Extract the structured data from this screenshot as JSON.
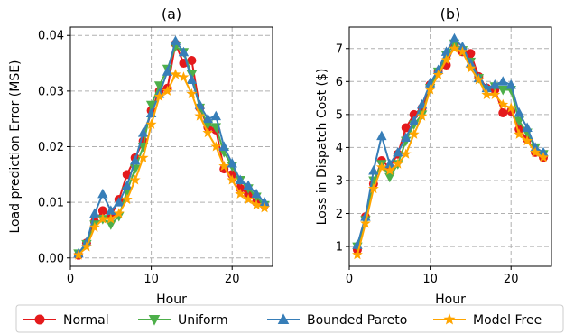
{
  "chart_data": [
    {
      "type": "line",
      "title": "(a)",
      "xlabel": "Hour",
      "ylabel": "Load prediction Error (MSE)",
      "xlim": [
        0,
        25
      ],
      "ylim": [
        -0.0015,
        0.0415
      ],
      "grid": true,
      "x_ticks": [
        0,
        10,
        20
      ],
      "x_tick_labels": [
        "0",
        "10",
        "20"
      ],
      "y_ticks": [
        0,
        0.01,
        0.02,
        0.03,
        0.04
      ],
      "y_tick_labels": [
        "0.00",
        "0.01",
        "0.02",
        "0.03",
        "0.04"
      ],
      "x": [
        1,
        2,
        3,
        4,
        5,
        6,
        7,
        8,
        9,
        10,
        11,
        12,
        13,
        14,
        15,
        16,
        17,
        18,
        19,
        20,
        21,
        22,
        23,
        24
      ],
      "series": [
        {
          "name": "Normal",
          "color": "#e41a1c",
          "marker": "circle",
          "values": [
            0.0005,
            0.0027,
            0.0065,
            0.0085,
            0.0075,
            0.0105,
            0.015,
            0.018,
            0.021,
            0.0265,
            0.03,
            0.0305,
            0.0385,
            0.035,
            0.0355,
            0.027,
            0.0235,
            0.023,
            0.016,
            0.015,
            0.0125,
            0.0115,
            0.01,
            0.0095
          ]
        },
        {
          "name": "Uniform",
          "color": "#4daf4a",
          "marker": "triangle-down",
          "values": [
            0.0008,
            0.0025,
            0.006,
            0.007,
            0.006,
            0.0075,
            0.012,
            0.016,
            0.02,
            0.0275,
            0.031,
            0.034,
            0.038,
            0.037,
            0.033,
            0.027,
            0.024,
            0.0235,
            0.019,
            0.0165,
            0.014,
            0.0125,
            0.011,
            0.0095
          ]
        },
        {
          "name": "Bounded Pareto",
          "color": "#377eb8",
          "marker": "triangle-up",
          "values": [
            0.0008,
            0.0028,
            0.008,
            0.0115,
            0.0085,
            0.01,
            0.013,
            0.0175,
            0.0225,
            0.026,
            0.0295,
            0.0335,
            0.039,
            0.037,
            0.032,
            0.0275,
            0.025,
            0.0255,
            0.02,
            0.017,
            0.014,
            0.013,
            0.0115,
            0.01
          ]
        },
        {
          "name": "Model Free",
          "color": "#ffa500",
          "marker": "star",
          "values": [
            0.0005,
            0.002,
            0.0055,
            0.007,
            0.007,
            0.008,
            0.0105,
            0.014,
            0.018,
            0.024,
            0.029,
            0.03,
            0.033,
            0.0325,
            0.0295,
            0.0255,
            0.0225,
            0.02,
            0.0165,
            0.014,
            0.0115,
            0.0105,
            0.0095,
            0.009
          ]
        }
      ]
    },
    {
      "type": "line",
      "title": "(b)",
      "xlabel": "Hour",
      "ylabel": "Loss in Dispatch Cost ($)",
      "xlim": [
        0,
        25
      ],
      "ylim": [
        0.4,
        7.65
      ],
      "grid": true,
      "x_ticks": [
        0,
        10,
        20
      ],
      "x_tick_labels": [
        "0",
        "10",
        "20"
      ],
      "y_ticks": [
        1,
        2,
        3,
        4,
        5,
        6,
        7
      ],
      "y_tick_labels": [
        "1",
        "2",
        "3",
        "4",
        "5",
        "6",
        "7"
      ],
      "x": [
        1,
        2,
        3,
        4,
        5,
        6,
        7,
        8,
        9,
        10,
        11,
        12,
        13,
        14,
        15,
        16,
        17,
        18,
        19,
        20,
        21,
        22,
        23,
        24
      ],
      "series": [
        {
          "name": "Normal",
          "color": "#e41a1c",
          "marker": "circle",
          "values": [
            0.9,
            1.9,
            2.9,
            3.6,
            3.4,
            3.8,
            4.6,
            5.0,
            5.2,
            5.9,
            6.3,
            6.5,
            7.1,
            6.9,
            6.85,
            6.15,
            5.8,
            5.75,
            5.05,
            5.1,
            4.55,
            4.25,
            3.85,
            3.7
          ]
        },
        {
          "name": "Uniform",
          "color": "#4daf4a",
          "marker": "triangle-down",
          "values": [
            1.0,
            1.8,
            3.0,
            3.5,
            3.1,
            3.5,
            4.2,
            4.7,
            5.0,
            5.8,
            6.3,
            6.8,
            7.15,
            6.95,
            6.6,
            6.1,
            5.75,
            5.85,
            5.75,
            5.75,
            4.8,
            4.45,
            4.0,
            3.8
          ]
        },
        {
          "name": "Bounded Pareto",
          "color": "#377eb8",
          "marker": "triangle-up",
          "values": [
            1.05,
            1.9,
            3.3,
            4.35,
            3.5,
            3.85,
            4.3,
            4.8,
            5.3,
            5.95,
            6.35,
            6.9,
            7.3,
            7.05,
            6.55,
            6.1,
            5.8,
            5.9,
            6.0,
            5.9,
            5.05,
            4.6,
            4.0,
            3.85
          ]
        },
        {
          "name": "Model Free",
          "color": "#ffa500",
          "marker": "star",
          "values": [
            0.75,
            1.7,
            2.75,
            3.4,
            3.3,
            3.5,
            3.8,
            4.4,
            4.95,
            5.75,
            6.2,
            6.65,
            7.0,
            6.9,
            6.4,
            6.05,
            5.6,
            5.6,
            5.3,
            5.2,
            4.4,
            4.2,
            3.85,
            3.7
          ]
        }
      ]
    }
  ],
  "legend": {
    "placement": "bottom",
    "entries": [
      "Normal",
      "Uniform",
      "Bounded Pareto",
      "Model Free"
    ]
  }
}
